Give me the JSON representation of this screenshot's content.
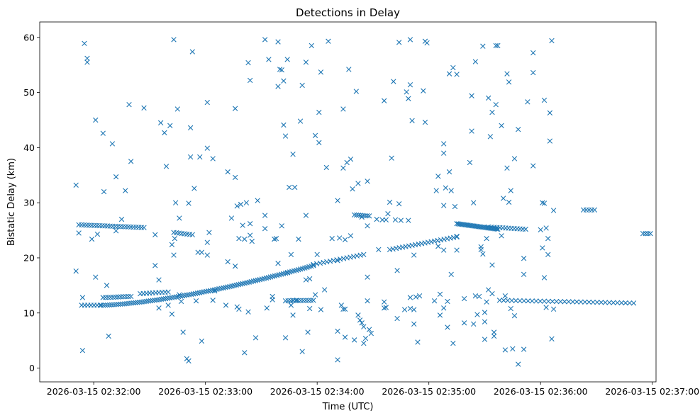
{
  "chart_data": {
    "type": "scatter",
    "title": "Detections in Delay",
    "xlabel": "Time (UTC)",
    "ylabel": "Bistatic Delay (km)",
    "x_tick_labels": [
      "2026-03-15 02:32:00",
      "2026-03-15 02:33:00",
      "2026-03-15 02:34:00",
      "2026-03-15 02:35:00",
      "2026-03-15 02:36:00",
      "2026-03-15 02:37:00"
    ],
    "x_ticks_seconds": [
      0,
      60,
      120,
      180,
      240,
      300
    ],
    "y_ticks": [
      0,
      10,
      20,
      30,
      40,
      50,
      60
    ],
    "xlim_seconds": [
      -29,
      302
    ],
    "ylim": [
      -2.5,
      62.8
    ],
    "marker": "x",
    "color": "#1f77b4",
    "grid": false,
    "x_unit_note": "x values are seconds after 2026-03-15 02:32:00 UTC",
    "tracks": [
      {
        "x_start": -6.5,
        "x_end": 3.5,
        "y_start": 11.4,
        "y_end": 11.4,
        "n": 7
      },
      {
        "x_start": 4.0,
        "x_end": 118.0,
        "y_start": 11.4,
        "y_end": 18.6,
        "n": 100,
        "curve": 1.5
      },
      {
        "x_start": 118.0,
        "x_end": 145.0,
        "y_start": 18.8,
        "y_end": 20.6,
        "n": 16
      },
      {
        "x_start": 159.0,
        "x_end": 195.0,
        "y_start": 21.5,
        "y_end": 23.8,
        "n": 22
      },
      {
        "x_start": 195.0,
        "x_end": 217.0,
        "y_start": 26.2,
        "y_end": 25.2,
        "n": 30
      },
      {
        "x_start": 218.0,
        "x_end": 290.0,
        "y_start": 12.3,
        "y_end": 11.8,
        "n": 34
      },
      {
        "x_start": -8.0,
        "x_end": 27.0,
        "y_start": 26.0,
        "y_end": 25.5,
        "n": 26
      },
      {
        "x_start": 5.0,
        "x_end": 20.0,
        "y_start": 12.8,
        "y_end": 13.0,
        "n": 12
      },
      {
        "x_start": 25.0,
        "x_end": 40.0,
        "y_start": 13.5,
        "y_end": 13.8,
        "n": 10
      },
      {
        "x_start": 43.0,
        "x_end": 53.0,
        "y_start": 24.6,
        "y_end": 24.2,
        "n": 8
      },
      {
        "x_start": 103.0,
        "x_end": 118.0,
        "y_start": 12.2,
        "y_end": 12.3,
        "n": 12
      },
      {
        "x_start": 140.0,
        "x_end": 148.0,
        "y_start": 27.8,
        "y_end": 27.6,
        "n": 8
      },
      {
        "x_start": 212.0,
        "x_end": 232.0,
        "y_start": 25.6,
        "y_end": 25.2,
        "n": 14
      },
      {
        "x_start": 263.0,
        "x_end": 269.0,
        "y_start": 28.7,
        "y_end": 28.7,
        "n": 5
      },
      {
        "x_start": 295.0,
        "x_end": 299.0,
        "y_start": 24.4,
        "y_end": 24.4,
        "n": 4
      }
    ],
    "points": [
      [
        -9.5,
        33.2
      ],
      [
        -9.5,
        17.6
      ],
      [
        -8,
        24.5
      ],
      [
        -6,
        12.8
      ],
      [
        -6,
        3.2
      ],
      [
        -5,
        58.9
      ],
      [
        -3.5,
        56.2
      ],
      [
        -3.5,
        55.5
      ],
      [
        -1,
        23.4
      ],
      [
        1,
        45.0
      ],
      [
        1,
        16.5
      ],
      [
        2,
        24.3
      ],
      [
        5,
        42.6
      ],
      [
        5.5,
        32.0
      ],
      [
        7,
        15.0
      ],
      [
        8,
        5.8
      ],
      [
        10,
        40.7
      ],
      [
        12,
        34.7
      ],
      [
        12,
        24.9
      ],
      [
        15,
        27.0
      ],
      [
        17,
        32.2
      ],
      [
        19,
        47.8
      ],
      [
        20,
        37.5
      ],
      [
        27,
        47.2
      ],
      [
        33,
        24.2
      ],
      [
        33,
        18.6
      ],
      [
        35,
        16.0
      ],
      [
        35,
        10.9
      ],
      [
        36,
        44.5
      ],
      [
        38,
        42.7
      ],
      [
        39,
        36.6
      ],
      [
        40,
        11.4
      ],
      [
        41,
        44.0
      ],
      [
        42,
        22.4
      ],
      [
        42,
        9.8
      ],
      [
        43,
        59.6
      ],
      [
        43,
        20.5
      ],
      [
        43.5,
        23.5
      ],
      [
        44,
        30.0
      ],
      [
        45,
        47.0
      ],
      [
        46,
        27.2
      ],
      [
        46,
        13.3
      ],
      [
        47,
        12.1
      ],
      [
        48,
        6.5
      ],
      [
        50,
        1.7
      ],
      [
        51,
        1.3
      ],
      [
        51,
        29.9
      ],
      [
        52,
        43.6
      ],
      [
        52,
        38.3
      ],
      [
        53,
        57.4
      ],
      [
        54,
        32.6
      ],
      [
        55,
        12.2
      ],
      [
        56,
        21.0
      ],
      [
        57,
        38.3
      ],
      [
        58,
        4.9
      ],
      [
        58,
        21.0
      ],
      [
        61,
        48.2
      ],
      [
        61,
        39.9
      ],
      [
        61,
        22.8
      ],
      [
        61,
        20.5
      ],
      [
        62,
        24.6
      ],
      [
        64,
        38.0
      ],
      [
        64,
        12.3
      ],
      [
        65,
        14.0
      ],
      [
        71,
        11.4
      ],
      [
        72,
        35.6
      ],
      [
        72,
        19.3
      ],
      [
        74,
        27.2
      ],
      [
        76,
        34.6
      ],
      [
        76,
        18.5
      ],
      [
        76,
        47.1
      ],
      [
        77,
        29.4
      ],
      [
        77,
        11.1
      ],
      [
        78,
        10.7
      ],
      [
        78,
        23.5
      ],
      [
        79,
        29.7
      ],
      [
        80,
        25.9
      ],
      [
        81,
        2.8
      ],
      [
        81,
        23.4
      ],
      [
        82,
        30.0
      ],
      [
        83,
        10.2
      ],
      [
        83,
        55.4
      ],
      [
        84,
        24.1
      ],
      [
        84,
        26.2
      ],
      [
        84,
        52.2
      ],
      [
        85,
        23.0
      ],
      [
        87,
        5.5
      ],
      [
        88,
        30.4
      ],
      [
        92,
        25.3
      ],
      [
        92,
        27.7
      ],
      [
        92,
        59.6
      ],
      [
        93,
        10.9
      ],
      [
        94,
        56.0
      ],
      [
        96,
        12.4
      ],
      [
        96,
        13.0
      ],
      [
        97,
        23.4
      ],
      [
        98,
        23.5
      ],
      [
        99,
        59.2
      ],
      [
        99,
        51.1
      ],
      [
        99,
        19.0
      ],
      [
        100,
        54.2
      ],
      [
        101,
        54.1
      ],
      [
        101,
        25.8
      ],
      [
        102,
        52.1
      ],
      [
        102,
        44.1
      ],
      [
        103,
        42.1
      ],
      [
        103,
        5.5
      ],
      [
        104,
        56.0
      ],
      [
        104,
        17.3
      ],
      [
        105,
        32.8
      ],
      [
        106,
        20.6
      ],
      [
        106,
        11.4
      ],
      [
        107,
        12.3
      ],
      [
        107,
        9.6
      ],
      [
        107,
        38.8
      ],
      [
        108,
        32.8
      ],
      [
        109,
        12.3
      ],
      [
        110,
        23.4
      ],
      [
        111,
        44.8
      ],
      [
        112,
        3.0
      ],
      [
        112,
        51.3
      ],
      [
        114,
        16.0
      ],
      [
        114,
        55.5
      ],
      [
        114,
        27.7
      ],
      [
        115,
        6.5
      ],
      [
        116,
        10.8
      ],
      [
        116,
        16.2
      ],
      [
        117,
        58.5
      ],
      [
        119,
        42.2
      ],
      [
        119,
        13.3
      ],
      [
        120,
        20.6
      ],
      [
        121,
        40.9
      ],
      [
        121,
        46.4
      ],
      [
        122,
        53.7
      ],
      [
        122,
        10.6
      ],
      [
        124,
        14.2
      ],
      [
        125,
        36.4
      ],
      [
        126,
        59.3
      ],
      [
        128,
        23.5
      ],
      [
        131,
        1.5
      ],
      [
        131,
        6.7
      ],
      [
        131,
        30.4
      ],
      [
        131,
        19.5
      ],
      [
        132,
        23.6
      ],
      [
        133,
        11.4
      ],
      [
        134,
        10.7
      ],
      [
        134,
        47.0
      ],
      [
        134,
        36.3
      ],
      [
        135,
        23.3
      ],
      [
        135,
        10.7
      ],
      [
        135,
        5.6
      ],
      [
        136,
        37.3
      ],
      [
        137,
        54.2
      ],
      [
        138,
        24.0
      ],
      [
        138,
        37.9
      ],
      [
        139,
        32.5
      ],
      [
        140,
        5.1
      ],
      [
        141,
        50.2
      ],
      [
        142,
        33.5
      ],
      [
        142,
        9.6
      ],
      [
        143,
        8.7
      ],
      [
        144,
        27.4
      ],
      [
        144,
        8.2
      ],
      [
        145,
        7.5
      ],
      [
        145,
        4.5
      ],
      [
        146,
        5.4
      ],
      [
        147,
        25.8
      ],
      [
        147,
        33.9
      ],
      [
        147,
        16.5
      ],
      [
        147,
        12.2
      ],
      [
        148,
        7.0
      ],
      [
        149,
        6.3
      ],
      [
        152,
        27.0
      ],
      [
        153,
        21.5
      ],
      [
        155,
        26.9
      ],
      [
        156,
        48.5
      ],
      [
        156,
        12.0
      ],
      [
        156,
        10.9
      ],
      [
        157,
        11.0
      ],
      [
        157,
        26.9
      ],
      [
        158,
        28.0
      ],
      [
        159,
        30.1
      ],
      [
        160,
        38.1
      ],
      [
        161,
        52.0
      ],
      [
        162,
        26.9
      ],
      [
        163,
        9.0
      ],
      [
        163,
        17.7
      ],
      [
        164,
        59.1
      ],
      [
        164,
        29.8
      ],
      [
        165,
        26.8
      ],
      [
        167,
        10.6
      ],
      [
        168,
        50.1
      ],
      [
        169,
        48.9
      ],
      [
        169,
        26.8
      ],
      [
        170,
        59.6
      ],
      [
        170,
        12.8
      ],
      [
        170,
        51.4
      ],
      [
        170,
        10.8
      ],
      [
        171,
        44.9
      ],
      [
        172,
        10.6
      ],
      [
        172,
        8.0
      ],
      [
        172,
        20.5
      ],
      [
        173,
        12.9
      ],
      [
        174,
        4.7
      ],
      [
        175,
        13.1
      ],
      [
        177,
        50.3
      ],
      [
        178,
        59.3
      ],
      [
        178,
        44.6
      ],
      [
        179,
        59.0
      ],
      [
        183,
        12.2
      ],
      [
        184,
        32.2
      ],
      [
        185,
        34.8
      ],
      [
        185,
        22.1
      ],
      [
        186,
        13.4
      ],
      [
        186,
        9.6
      ],
      [
        188,
        21.4
      ],
      [
        188,
        40.7
      ],
      [
        188,
        39.0
      ],
      [
        188,
        29.5
      ],
      [
        188,
        10.9
      ],
      [
        189,
        32.7
      ],
      [
        190,
        7.4
      ],
      [
        190,
        12.1
      ],
      [
        191,
        35.6
      ],
      [
        191,
        53.4
      ],
      [
        192,
        32.2
      ],
      [
        192,
        17.0
      ],
      [
        193,
        54.5
      ],
      [
        193,
        4.5
      ],
      [
        194,
        29.3
      ],
      [
        195,
        53.3
      ],
      [
        195,
        23.9
      ],
      [
        195,
        21.4
      ],
      [
        199,
        12.6
      ],
      [
        199,
        8.2
      ],
      [
        202,
        37.3
      ],
      [
        203,
        49.4
      ],
      [
        203,
        43.0
      ],
      [
        204,
        30.0
      ],
      [
        204,
        8.0
      ],
      [
        205,
        55.6
      ],
      [
        205,
        13.1
      ],
      [
        206,
        9.7
      ],
      [
        207,
        13.0
      ],
      [
        208,
        21.5
      ],
      [
        208,
        22.0
      ],
      [
        209,
        58.4
      ],
      [
        209,
        20.7
      ],
      [
        210,
        5.2
      ],
      [
        210,
        10.1
      ],
      [
        210,
        8.4
      ],
      [
        211,
        12.0
      ],
      [
        211,
        23.5
      ],
      [
        212,
        49.0
      ],
      [
        212,
        14.2
      ],
      [
        213,
        42.0
      ],
      [
        214,
        46.4
      ],
      [
        214,
        18.7
      ],
      [
        214,
        13.5
      ],
      [
        215,
        6.5
      ],
      [
        215,
        5.8
      ],
      [
        216,
        58.5
      ],
      [
        216,
        47.8
      ],
      [
        217,
        58.5
      ],
      [
        219,
        44.0
      ],
      [
        219,
        24.0
      ],
      [
        220,
        30.8
      ],
      [
        221,
        3.3
      ],
      [
        221,
        13.1
      ],
      [
        222,
        53.4
      ],
      [
        222,
        36.3
      ],
      [
        223,
        51.9
      ],
      [
        223,
        30.1
      ],
      [
        224,
        32.2
      ],
      [
        224,
        10.8
      ],
      [
        225,
        3.5
      ],
      [
        226,
        38.0
      ],
      [
        226,
        9.5
      ],
      [
        228,
        43.3
      ],
      [
        228,
        0.7
      ],
      [
        231,
        3.4
      ],
      [
        231,
        17.0
      ],
      [
        231,
        19.9
      ],
      [
        233,
        48.3
      ],
      [
        236,
        36.7
      ],
      [
        236,
        53.6
      ],
      [
        236,
        57.2
      ],
      [
        240,
        25.1
      ],
      [
        241,
        30.0
      ],
      [
        241,
        21.8
      ],
      [
        242,
        16.4
      ],
      [
        242,
        48.6
      ],
      [
        242,
        29.9
      ],
      [
        243,
        11.0
      ],
      [
        243,
        25.4
      ],
      [
        244,
        20.6
      ],
      [
        244,
        23.5
      ],
      [
        245,
        41.2
      ],
      [
        245,
        46.3
      ],
      [
        246,
        59.4
      ],
      [
        246,
        5.3
      ],
      [
        247,
        10.7
      ],
      [
        247,
        28.6
      ]
    ]
  }
}
